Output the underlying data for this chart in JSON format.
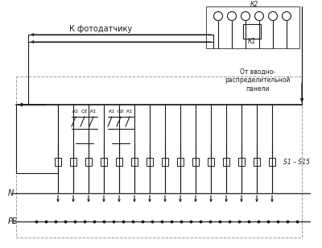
{
  "bg_color": "#ffffff",
  "line_color": "#1a1a1a",
  "text_color": "#1a1a1a",
  "labels": {
    "fotodatchik": "К фотодатчику",
    "ot_vvodno": "От вводно-\nраспределительной\nпанели",
    "K2": "К2",
    "K1": "К1",
    "Q1": "Q1",
    "Q2": "Q2",
    "N": "N",
    "PE": "PE",
    "S1_S15": "S1 – S15"
  },
  "n_circuits": 15
}
